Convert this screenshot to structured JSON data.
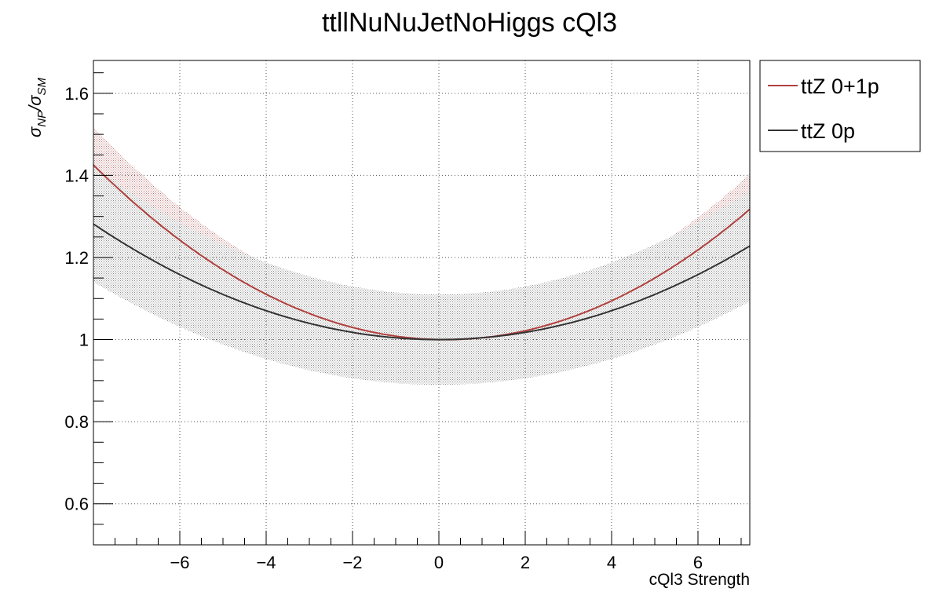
{
  "chart_data": {
    "type": "line",
    "title": "ttllNuNuJetNoHiggs cQl3",
    "xlabel": "cQl3 Strength",
    "ylabel_main": "σ",
    "ylabel_sub1": "NP",
    "ylabel_slash": "/σ",
    "ylabel_sub2": "SM",
    "xlim": [
      -8,
      7.2
    ],
    "ylim": [
      0.5,
      1.68
    ],
    "xticks": [
      -6,
      -4,
      -2,
      0,
      2,
      4,
      6
    ],
    "xtick_labels": [
      "−6",
      "−4",
      "−2",
      "0",
      "2",
      "4",
      "6"
    ],
    "yticks": [
      0.6,
      0.8,
      1.0,
      1.2,
      1.4,
      1.6
    ],
    "ytick_labels": [
      "0.6",
      "0.8",
      "1",
      "1.2",
      "1.4",
      "1.6"
    ],
    "grid": true,
    "legend_position": "outside-top-right",
    "series": [
      {
        "name": "ttZ 0+1p",
        "color": "#b0413e",
        "band_color": "#d9a0a0",
        "quadratic": {
          "a": 1.0,
          "b": -0.002,
          "c": 0.0064
        },
        "band_halfwidth_frac": 0.065
      },
      {
        "name": "ttZ 0p",
        "color": "#333333",
        "band_color": "#9a9a9a",
        "quadratic": {
          "a": 1.0,
          "b": 0.0,
          "c": 0.0044
        },
        "band_halfwidth_frac": 0.11
      }
    ]
  }
}
